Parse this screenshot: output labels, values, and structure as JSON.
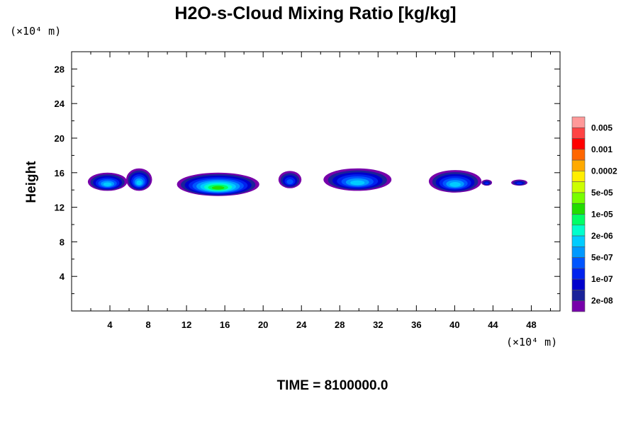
{
  "chart_data": {
    "type": "heatmap",
    "title": "H2O-s-Cloud Mixing Ratio [kg/kg]",
    "ylabel": "Height",
    "x_unit": "(×10⁴ m)",
    "y_unit": "(×10⁴ m)",
    "xlim": [
      0,
      51
    ],
    "ylim": [
      0,
      30
    ],
    "x_ticks": [
      4,
      8,
      12,
      16,
      20,
      24,
      28,
      32,
      36,
      40,
      44,
      48
    ],
    "y_ticks": [
      4,
      8,
      12,
      16,
      20,
      24,
      28
    ],
    "footer": "TIME = 8100000.0",
    "colorbar": {
      "labels": [
        "0.005",
        "0.001",
        "0.0002",
        "5e-05",
        "1e-05",
        "2e-06",
        "5e-07",
        "1e-07",
        "2e-08"
      ],
      "colors": [
        "#ff9999",
        "#ff4444",
        "#ff0000",
        "#ff6600",
        "#ffaa00",
        "#ffee00",
        "#ccff00",
        "#77ff00",
        "#22dd00",
        "#00ff66",
        "#00ffcc",
        "#00ccff",
        "#0099ff",
        "#0055ff",
        "#0022ee",
        "#0000cc",
        "#1a2299",
        "#7700aa"
      ]
    },
    "clouds": [
      {
        "x_range": [
          1.7,
          5.8
        ],
        "z_range": [
          13.9,
          16.0
        ],
        "peak_band": 6
      },
      {
        "x_range": [
          5.7,
          8.4
        ],
        "z_range": [
          13.9,
          16.5
        ],
        "peak_band": 6
      },
      {
        "x_range": [
          11.0,
          19.6
        ],
        "z_range": [
          13.3,
          16.0
        ],
        "peak_band": 9
      },
      {
        "x_range": [
          21.6,
          24.0
        ],
        "z_range": [
          14.2,
          16.2
        ],
        "peak_band": 4
      },
      {
        "x_range": [
          26.3,
          33.4
        ],
        "z_range": [
          13.9,
          16.5
        ],
        "peak_band": 6
      },
      {
        "x_range": [
          37.3,
          42.8
        ],
        "z_range": [
          13.7,
          16.3
        ],
        "peak_band": 6
      },
      {
        "x_range": [
          42.8,
          43.9
        ],
        "z_range": [
          14.5,
          15.2
        ],
        "peak_band": 3
      },
      {
        "x_range": [
          45.9,
          47.6
        ],
        "z_range": [
          14.5,
          15.2
        ],
        "peak_band": 3
      }
    ]
  }
}
